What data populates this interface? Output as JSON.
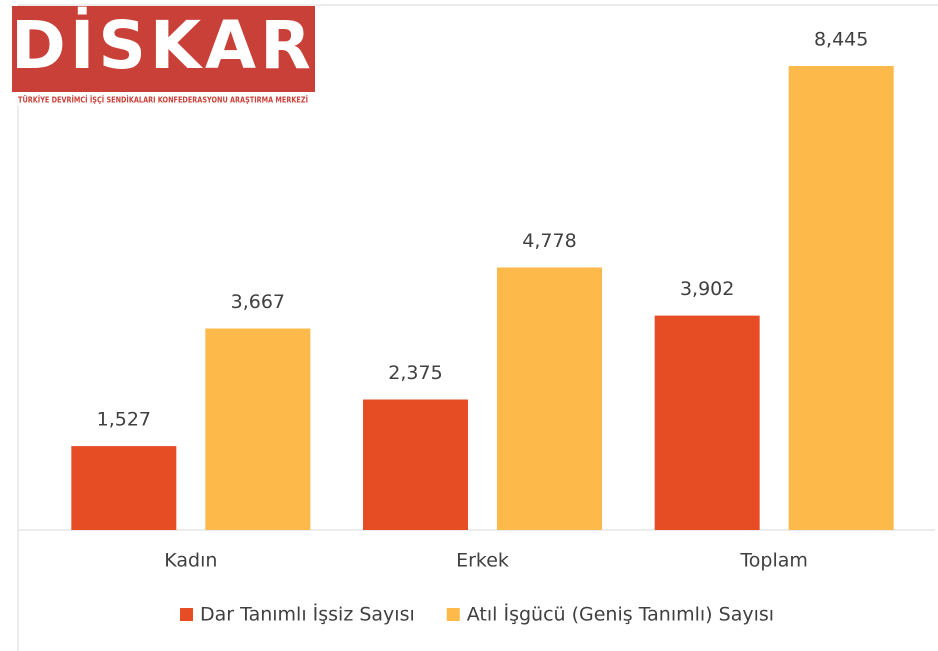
{
  "logo": {
    "name": "DİSKAR",
    "tagline": "TÜRKİYE DEVRİMCİ İŞÇİ SENDİKALARI KONFEDERASYONU ARAŞTIRMA MERKEZİ"
  },
  "chart_data": {
    "type": "bar",
    "categories": [
      "Kadın",
      "Erkek",
      "Toplam"
    ],
    "series": [
      {
        "name": "Dar Tanımlı İşsiz Sayısı",
        "color": "#e64d24",
        "values": [
          1527,
          2375,
          3902
        ],
        "value_labels": [
          "1,527",
          "2,375",
          "3,902"
        ]
      },
      {
        "name": "Atıl İşgücü (Geniş Tanımlı) Sayısı",
        "color": "#fdb94a",
        "values": [
          3667,
          4778,
          8445
        ],
        "value_labels": [
          "3,667",
          "4,778",
          "8,445"
        ]
      }
    ],
    "legend": "bottom"
  }
}
